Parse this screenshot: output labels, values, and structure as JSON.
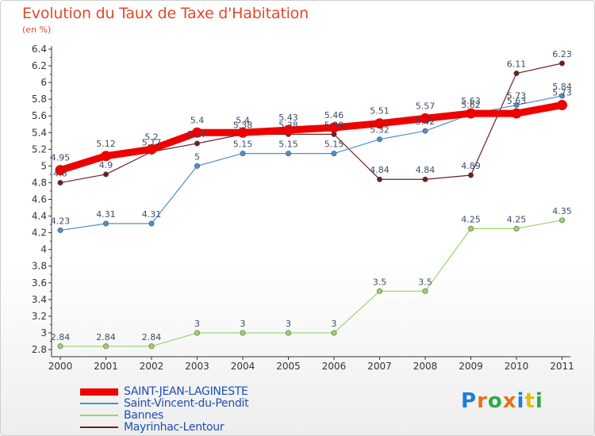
{
  "title": "Evolution du Taux de Taxe d'Habitation",
  "unit": "(en %)",
  "logo": {
    "text": "Proxiti",
    "colors": [
      "#1a7fd6",
      "#e0741a",
      "#2da84a",
      "#e0741a",
      "#1a7fd6",
      "#d8c21a",
      "#2da84a"
    ]
  },
  "chart_data": {
    "type": "line",
    "title": "Evolution du Taux de Taxe d'Habitation",
    "ylabel": "(en %)",
    "xlabel": "",
    "x": [
      "2000",
      "2001",
      "2002",
      "2003",
      "2004",
      "2005",
      "2006",
      "2007",
      "2008",
      "2009",
      "2010",
      "2011"
    ],
    "ylim": [
      2.8,
      6.4
    ],
    "yticks": [
      "6.4",
      "6.2",
      "6",
      "5.8",
      "5.6",
      "5.4",
      "5.2",
      "5",
      "4.8",
      "4.6",
      "4.4",
      "4.2",
      "4",
      "3.8",
      "3.6",
      "3.4",
      "3.2",
      "3",
      "2.8"
    ],
    "grid": false,
    "legend": "bottom-left",
    "series": [
      {
        "name": "SAINT-JEAN-LAGINESTE",
        "color": "#ee0000",
        "values": [
          4.95,
          5.12,
          5.2,
          5.4,
          5.4,
          5.43,
          5.46,
          5.51,
          5.57,
          5.63,
          5.63,
          5.73
        ],
        "labels": [
          "4.95",
          "5.12",
          "5.2",
          "5.4",
          "5.4",
          "5.43",
          "5.46",
          "5.51",
          "5.57",
          "5.63",
          "5.63",
          "5.73"
        ]
      },
      {
        "name": "Saint-Vincent-du-Pendit",
        "color": "#4c8fcf",
        "values": [
          4.23,
          4.31,
          4.31,
          5,
          5.15,
          5.15,
          5.15,
          5.32,
          5.42,
          5.62,
          5.73,
          5.84
        ],
        "labels": [
          "4.23",
          "4.31",
          "4.31",
          "5",
          "5.15",
          "5.15",
          "5.15",
          "5.32",
          "5.42",
          "5.62",
          "5.73",
          "5.84"
        ]
      },
      {
        "name": "Bannes",
        "color": "#99d46a",
        "values": [
          2.84,
          2.84,
          2.84,
          3,
          3,
          3,
          3,
          3.5,
          3.5,
          4.25,
          4.25,
          4.35
        ],
        "labels": [
          "2.84",
          "2.84",
          "2.84",
          "3",
          "3",
          "3",
          "3",
          "3.5",
          "3.5",
          "4.25",
          "4.25",
          "4.35"
        ]
      },
      {
        "name": "Mayrinhac-Lentour",
        "color": "#6e1e1e",
        "values": [
          4.8,
          4.9,
          5.17,
          5.27,
          5.38,
          5.38,
          5.38,
          4.84,
          4.84,
          4.89,
          6.11,
          6.23
        ],
        "labels": [
          "4.8",
          "4.9",
          "5.17",
          "5.27",
          "5.38",
          "5.38",
          "5.38",
          "4.84",
          "4.84",
          "4.89",
          "6.11",
          "6.23"
        ]
      }
    ]
  }
}
